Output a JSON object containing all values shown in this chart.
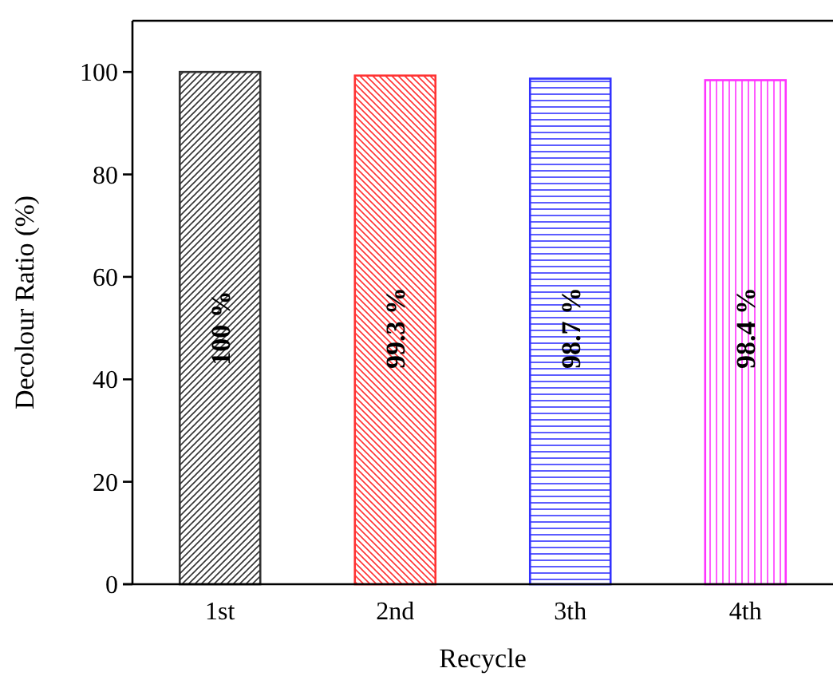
{
  "chart_data": {
    "type": "bar",
    "xlabel": "Recycle",
    "ylabel": "Decolour Ratio (%)",
    "categories": [
      "1st",
      "2nd",
      "3th",
      "4th"
    ],
    "values": [
      100,
      99.3,
      98.7,
      98.4
    ],
    "colors": [
      "#333333",
      "#ff3333",
      "#3333ff",
      "#ff33ff"
    ],
    "value_labels": [
      "100 %",
      "99.3 %",
      "98.7 %",
      "98.4 %"
    ],
    "ylim": [
      0,
      110
    ],
    "yticks": [
      0,
      20,
      40,
      60,
      80,
      100
    ],
    "grid": false
  }
}
